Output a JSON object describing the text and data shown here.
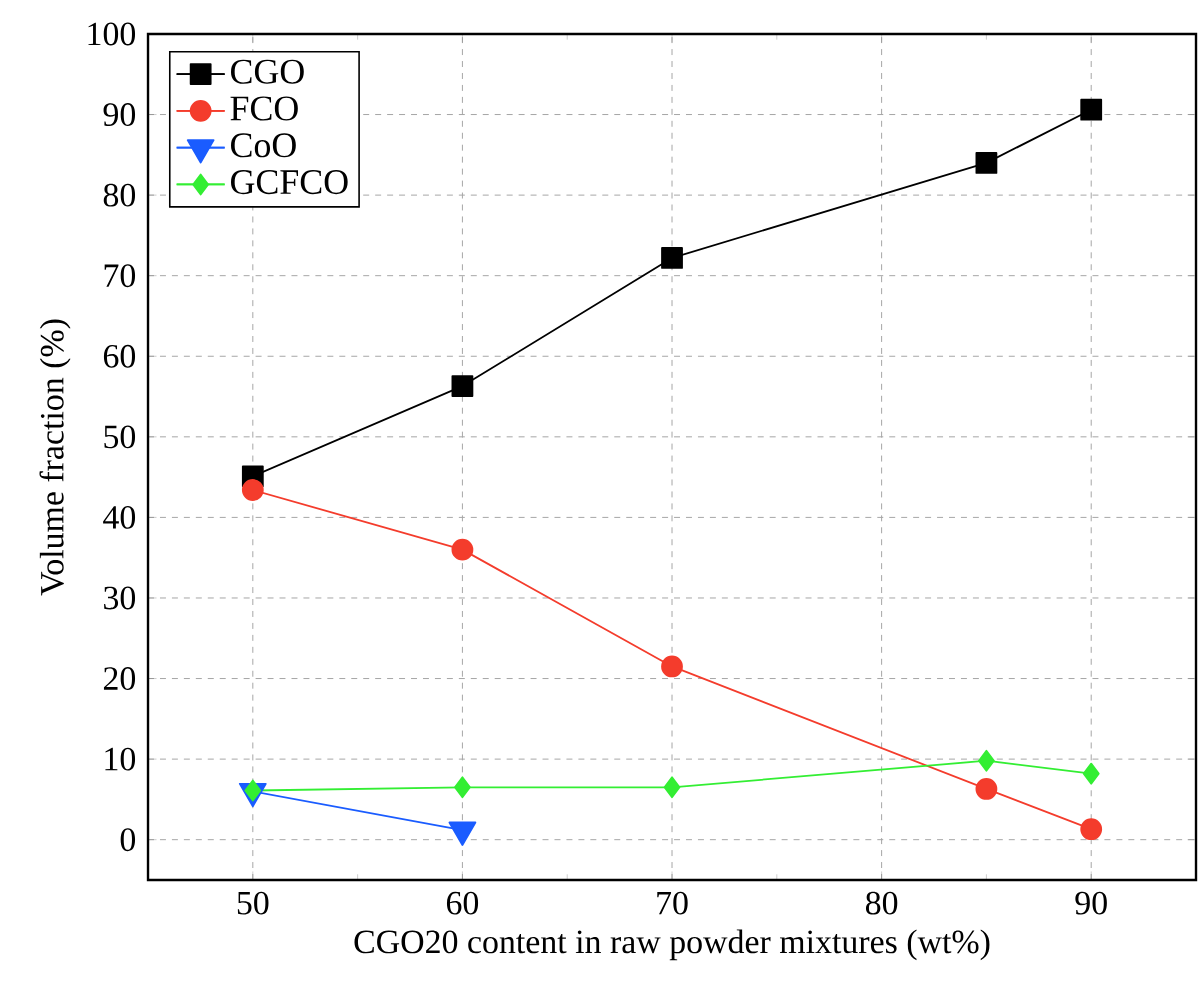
{
  "chart_data": {
    "type": "line",
    "xlabel": "CGO20 content in raw powder mixtures (wt%)",
    "ylabel": "Volume fraction (%)",
    "xlim": [
      45,
      95
    ],
    "ylim": [
      -5,
      100
    ],
    "xticks": [
      50,
      60,
      70,
      80,
      90
    ],
    "yticks": [
      0,
      10,
      20,
      30,
      40,
      50,
      60,
      70,
      80,
      90,
      100
    ],
    "grid": true,
    "legend": "top left",
    "line_style": "solid",
    "series": [
      {
        "name": "CGO",
        "color": "#000000",
        "marker": "square",
        "x": [
          50,
          60,
          70,
          85,
          90
        ],
        "values": [
          45.1,
          56.3,
          72.2,
          84.0,
          90.6
        ]
      },
      {
        "name": "FCO",
        "color": "#f43c2c",
        "marker": "circle",
        "x": [
          50,
          60,
          70,
          85,
          90
        ],
        "values": [
          43.4,
          36.0,
          21.5,
          6.3,
          1.3
        ]
      },
      {
        "name": "CoO",
        "color": "#1a5cff",
        "marker": "triangle-down",
        "x": [
          50,
          60
        ],
        "values": [
          6.0,
          1.2
        ]
      },
      {
        "name": "GCFCO",
        "color": "#33ee33",
        "marker": "diamond",
        "x": [
          50,
          60,
          70,
          85,
          90
        ],
        "values": [
          6.1,
          6.5,
          6.5,
          9.8,
          8.2
        ]
      }
    ]
  }
}
